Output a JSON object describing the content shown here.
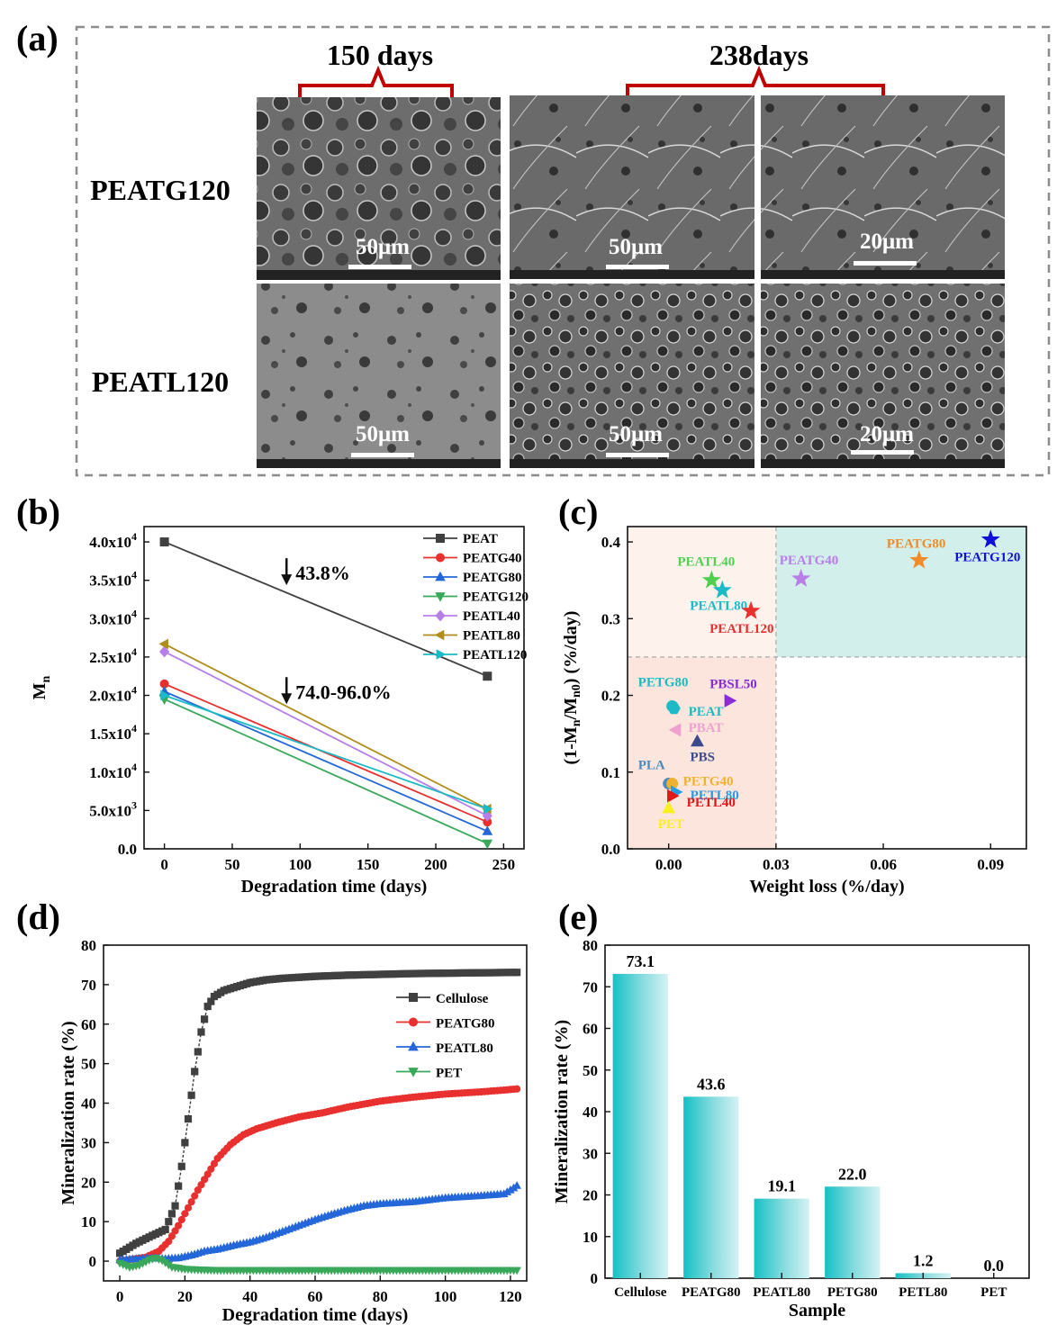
{
  "panel_a": {
    "label": "(a)",
    "time_labels": [
      "150 days",
      "238days"
    ],
    "row_labels": [
      "PEATG120",
      "PEATL120"
    ],
    "scale_bars": [
      "50μm",
      "50μm",
      "20μm",
      "50μm",
      "50μm",
      "20μm"
    ]
  },
  "chart_data": [
    {
      "panel": "(b)",
      "type": "line",
      "xlabel": "Degradation time (days)",
      "ylabel": "Mn",
      "xlim": [
        -15,
        265
      ],
      "ylim": [
        0,
        42000
      ],
      "xticks": [
        0,
        50,
        100,
        150,
        200,
        250
      ],
      "yticks": [
        0,
        5000,
        10000,
        15000,
        20000,
        25000,
        30000,
        35000,
        40000
      ],
      "ytick_labels": [
        {
          "v": 0,
          "m": "0.0",
          "e": ""
        },
        {
          "v": 5000,
          "m": "5.0x10",
          "e": "3"
        },
        {
          "v": 10000,
          "m": "1.0x10",
          "e": "4"
        },
        {
          "v": 15000,
          "m": "1.5x10",
          "e": "4"
        },
        {
          "v": 20000,
          "m": "2.0x10",
          "e": "4"
        },
        {
          "v": 25000,
          "m": "2.5x10",
          "e": "4"
        },
        {
          "v": 30000,
          "m": "3.0x10",
          "e": "4"
        },
        {
          "v": 35000,
          "m": "3.5x10",
          "e": "4"
        },
        {
          "v": 40000,
          "m": "4.0x10",
          "e": "4"
        }
      ],
      "legend_position": "top-right",
      "annotations": [
        {
          "text": "43.8%",
          "x": 90,
          "y": 36000
        },
        {
          "text": "74.0-96.0%",
          "x": 90,
          "y": 20500
        }
      ],
      "series": [
        {
          "name": "PEAT",
          "color": "#404040",
          "marker": "square",
          "x": [
            0,
            238
          ],
          "y": [
            40000,
            22500
          ]
        },
        {
          "name": "PEATG40",
          "color": "#e8302f",
          "marker": "circle",
          "x": [
            0,
            238
          ],
          "y": [
            21500,
            3500
          ]
        },
        {
          "name": "PEATG80",
          "color": "#2467d8",
          "marker": "triangle-up",
          "x": [
            0,
            238
          ],
          "y": [
            20500,
            2300
          ]
        },
        {
          "name": "PEATG120",
          "color": "#3aa85a",
          "marker": "triangle-down",
          "x": [
            0,
            238
          ],
          "y": [
            19500,
            700
          ]
        },
        {
          "name": "PEATL40",
          "color": "#b87ee8",
          "marker": "diamond",
          "x": [
            0,
            238
          ],
          "y": [
            25700,
            4300
          ]
        },
        {
          "name": "PEATL80",
          "color": "#b08c1b",
          "marker": "triangle-left",
          "x": [
            0,
            238
          ],
          "y": [
            26700,
            5200
          ]
        },
        {
          "name": "PEATL120",
          "color": "#1bbac6",
          "marker": "triangle-right",
          "x": [
            0,
            238
          ],
          "y": [
            20000,
            5200
          ]
        }
      ]
    },
    {
      "panel": "(c)",
      "type": "scatter",
      "xlabel": "Weight loss (%/day)",
      "ylabel": "(1-Mn/Mn0) (%/day)",
      "xlim": [
        -0.0115,
        0.1
      ],
      "ylim": [
        0,
        0.42
      ],
      "xticks": [
        0.0,
        0.03,
        0.06,
        0.09
      ],
      "xtick_labels": [
        "0.00",
        "0.03",
        "0.06",
        "0.09"
      ],
      "yticks": [
        0.0,
        0.1,
        0.2,
        0.3,
        0.4
      ],
      "ytick_labels": [
        "0.0",
        "0.1",
        "0.2",
        "0.3",
        "0.4"
      ],
      "regions": [
        {
          "x": [
            -0.0115,
            0.03
          ],
          "y": [
            0.25,
            0.42
          ],
          "color": "#fdf2ec"
        },
        {
          "x": [
            -0.0115,
            0.03
          ],
          "y": [
            0,
            0.25
          ],
          "color": "#fbe5dc"
        },
        {
          "x": [
            0.03,
            0.1
          ],
          "y": [
            0.25,
            0.42
          ],
          "color": "#d3efeb"
        }
      ],
      "points": [
        {
          "label": "PEATL40",
          "x": 0.012,
          "y": 0.35,
          "color": "#4fd14f",
          "marker": "star"
        },
        {
          "label": "PEATL80",
          "x": 0.015,
          "y": 0.337,
          "color": "#1bbac6",
          "marker": "star"
        },
        {
          "label": "PEATL120",
          "x": 0.023,
          "y": 0.31,
          "color": "#e8302f",
          "marker": "star"
        },
        {
          "label": "PEATG40",
          "x": 0.037,
          "y": 0.352,
          "color": "#b87ee8",
          "marker": "star"
        },
        {
          "label": "PEATG80",
          "x": 0.07,
          "y": 0.376,
          "color": "#f08a2a",
          "marker": "star"
        },
        {
          "label": "PEATG120",
          "x": 0.09,
          "y": 0.403,
          "color": "#1010d8",
          "marker": "star"
        },
        {
          "label": "PETG80",
          "x": 0.001,
          "y": 0.186,
          "color": "#1bbac6",
          "marker": "circle"
        },
        {
          "label": "PEAT",
          "x": 0.0015,
          "y": 0.183,
          "color": "#1bbac6",
          "marker": "hexagon"
        },
        {
          "label": "PBSL50",
          "x": 0.017,
          "y": 0.193,
          "color": "#8a2ad8",
          "marker": "triangle-right"
        },
        {
          "label": "PBAT",
          "x": 0.002,
          "y": 0.155,
          "color": "#f0a0d0",
          "marker": "triangle-left"
        },
        {
          "label": "PBS",
          "x": 0.008,
          "y": 0.14,
          "color": "#3a4a8c",
          "marker": "triangle-up"
        },
        {
          "label": "PLA",
          "x": 0.0,
          "y": 0.085,
          "color": "#4a8ac0",
          "marker": "circle"
        },
        {
          "label": "PETG40",
          "x": 0.001,
          "y": 0.085,
          "color": "#f0b030",
          "marker": "circle"
        },
        {
          "label": "PETL80",
          "x": 0.002,
          "y": 0.074,
          "color": "#2a9ae0",
          "marker": "triangle-right"
        },
        {
          "label": "PETL40",
          "x": 0.001,
          "y": 0.069,
          "color": "#e01818",
          "marker": "triangle-right"
        },
        {
          "label": "PET",
          "x": 0.0,
          "y": 0.053,
          "color": "#f8f020",
          "marker": "triangle-up"
        }
      ]
    },
    {
      "panel": "(d)",
      "type": "line",
      "xlabel": "Degradation time (days)",
      "ylabel": "Mineralization rate (%)",
      "xlim": [
        -5,
        125
      ],
      "ylim": [
        -5,
        80
      ],
      "xticks": [
        0,
        20,
        40,
        60,
        80,
        100,
        120
      ],
      "yticks": [
        0,
        10,
        20,
        30,
        40,
        50,
        60,
        70,
        80
      ],
      "legend_position": "right",
      "series": [
        {
          "name": "Cellulose",
          "color": "#404040",
          "marker": "square",
          "x": [
            0,
            5,
            10,
            14,
            17,
            19,
            21,
            23,
            25,
            27,
            29,
            32,
            36,
            40,
            45,
            50,
            60,
            70,
            80,
            90,
            100,
            110,
            122
          ],
          "y": [
            2,
            4.5,
            6.5,
            8,
            14,
            24,
            36,
            48,
            58,
            64.5,
            67,
            68.5,
            69.5,
            70.5,
            71.2,
            71.6,
            72.1,
            72.4,
            72.6,
            72.8,
            72.9,
            73,
            73.1
          ]
        },
        {
          "name": "PEATG80",
          "color": "#e8302f",
          "marker": "circle",
          "x": [
            0,
            4,
            8,
            12,
            15,
            18,
            21,
            24,
            27,
            30,
            34,
            38,
            42,
            48,
            55,
            62,
            70,
            80,
            90,
            100,
            110,
            118,
            122
          ],
          "y": [
            0,
            0.5,
            1,
            2.5,
            5,
            9,
            13.5,
            18,
            22,
            26,
            29.5,
            32,
            33.5,
            35,
            36.5,
            37.5,
            39,
            40.5,
            41.5,
            42.3,
            42.8,
            43.3,
            43.6
          ]
        },
        {
          "name": "PEATL80",
          "color": "#2467d8",
          "marker": "triangle-up",
          "x": [
            0,
            5,
            10,
            14,
            18,
            22,
            26,
            30,
            35,
            40,
            45,
            50,
            55,
            60,
            65,
            70,
            75,
            80,
            90,
            100,
            110,
            118,
            121,
            122
          ],
          "y": [
            0.3,
            0.6,
            0.8,
            0.6,
            0.8,
            1.5,
            2.5,
            3,
            4,
            4.8,
            6,
            7.5,
            9,
            10.5,
            11.8,
            13,
            14,
            14.5,
            15,
            16,
            16.5,
            17,
            18.5,
            19.1
          ]
        },
        {
          "name": "PET",
          "color": "#3aa85a",
          "marker": "triangle-down",
          "x": [
            0,
            3,
            6,
            9,
            11,
            13,
            16,
            20,
            25,
            30,
            40,
            50,
            60,
            70,
            80,
            90,
            100,
            110,
            122
          ],
          "y": [
            -0.5,
            -1.5,
            -1,
            0.3,
            0.8,
            0.2,
            -1.5,
            -2,
            -2.2,
            -2.3,
            -2.3,
            -2.3,
            -2.3,
            -2.3,
            -2.3,
            -2.3,
            -2.3,
            -2.3,
            -2.3
          ]
        }
      ]
    },
    {
      "panel": "(e)",
      "type": "bar",
      "xlabel": "Sample",
      "ylabel": "Mineralization rate (%)",
      "ylim": [
        0,
        80
      ],
      "yticks": [
        0,
        10,
        20,
        30,
        40,
        50,
        60,
        70,
        80
      ],
      "categories": [
        "Cellulose",
        "PEATG80",
        "PEATL80",
        "PETG80",
        "PETL80",
        "PET"
      ],
      "values": [
        73.1,
        43.6,
        19.1,
        22.0,
        1.2,
        0.0
      ],
      "value_labels": [
        "73.1",
        "43.6",
        "19.1",
        "22.0",
        "1.2",
        "0.0"
      ]
    }
  ]
}
